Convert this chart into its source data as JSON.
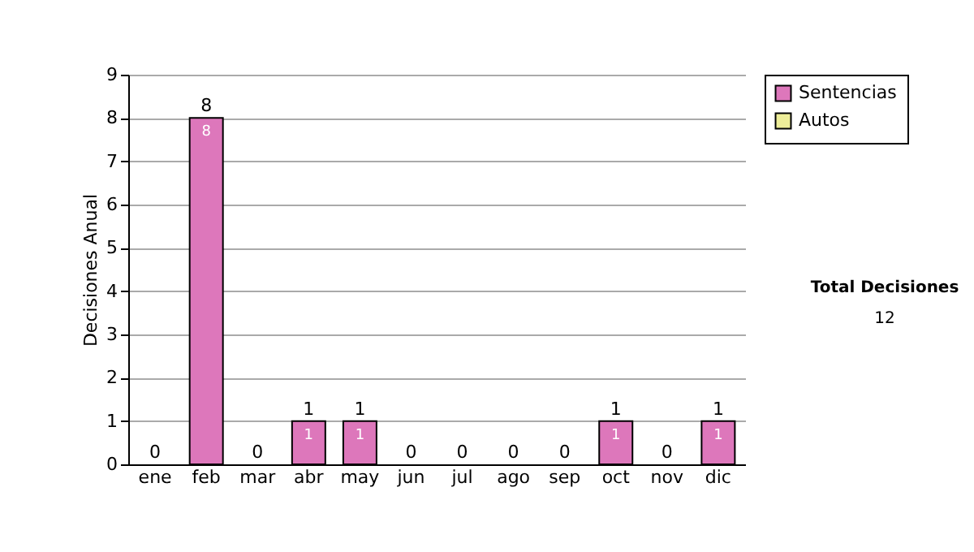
{
  "chart_data": {
    "type": "bar",
    "ylabel": "Decisiones Anual",
    "categories": [
      "ene",
      "feb",
      "mar",
      "abr",
      "may",
      "jun",
      "jul",
      "ago",
      "sep",
      "oct",
      "nov",
      "dic"
    ],
    "stacked": true,
    "ylim": [
      0,
      9
    ],
    "yticks": [
      0,
      1,
      2,
      3,
      4,
      5,
      6,
      7,
      8,
      9
    ],
    "grid": "y",
    "legend": "right",
    "series": [
      {
        "name": "Sentencias",
        "color": "#dd77bb",
        "values": [
          0,
          8,
          0,
          1,
          1,
          0,
          0,
          0,
          0,
          1,
          0,
          1
        ],
        "value_labels": [
          null,
          "8",
          null,
          "1",
          "1",
          null,
          null,
          null,
          null,
          "1",
          null,
          "1"
        ]
      },
      {
        "name": "Autos",
        "color": "#eeee99",
        "values": [
          0,
          0,
          0,
          0,
          0,
          0,
          0,
          0,
          0,
          0,
          0,
          0
        ]
      }
    ],
    "totals": [
      "0",
      "8",
      "0",
      "1",
      "1",
      "0",
      "0",
      "0",
      "0",
      "1",
      "0",
      "1"
    ],
    "annotations": [
      "Total Decisiones",
      "12"
    ]
  }
}
